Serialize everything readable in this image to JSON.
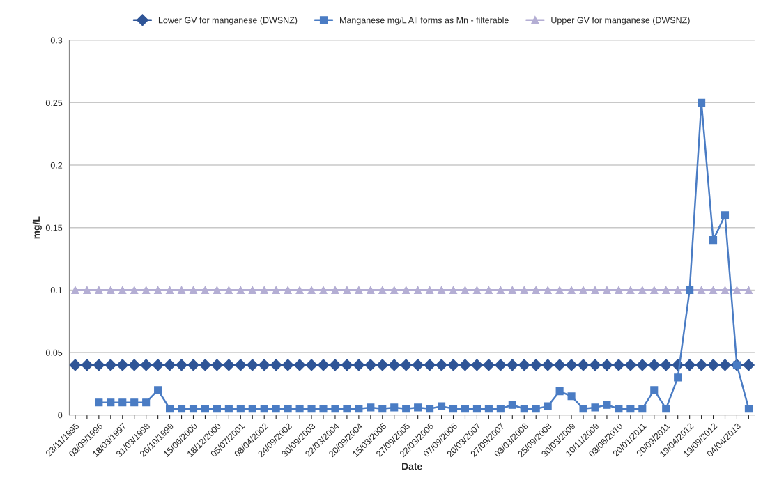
{
  "chart_data": {
    "type": "line",
    "xlabel": "Date",
    "ylabel": "mg/L",
    "categories": [
      "23/11/1995",
      null,
      "03/09/1996",
      null,
      "18/03/1997",
      null,
      "31/03/1998",
      null,
      "26/10/1999",
      null,
      "15/06/2000",
      null,
      "18/12/2000",
      null,
      "05/07/2001",
      null,
      "08/04/2002",
      null,
      "24/09/2002",
      null,
      "30/09/2003",
      null,
      "22/03/2004",
      null,
      "20/09/2004",
      null,
      "15/03/2005",
      null,
      "27/09/2005",
      null,
      "22/03/2006",
      null,
      "07/09/2006",
      null,
      "20/03/2007",
      null,
      "27/09/2007",
      null,
      "03/03/2008",
      null,
      "25/09/2008",
      null,
      "30/03/2009",
      null,
      "10/11/2009",
      null,
      "03/06/2010",
      null,
      "20/01/2011",
      null,
      "20/09/2011",
      null,
      "19/04/2012",
      null,
      "19/09/2012",
      null,
      "04/04/2013",
      null
    ],
    "series": [
      {
        "name": "Lower GV for manganese (DWSNZ)",
        "color": "#2f5597",
        "marker": "diamond",
        "values": [
          0.04,
          0.04,
          0.04,
          0.04,
          0.04,
          0.04,
          0.04,
          0.04,
          0.04,
          0.04,
          0.04,
          0.04,
          0.04,
          0.04,
          0.04,
          0.04,
          0.04,
          0.04,
          0.04,
          0.04,
          0.04,
          0.04,
          0.04,
          0.04,
          0.04,
          0.04,
          0.04,
          0.04,
          0.04,
          0.04,
          0.04,
          0.04,
          0.04,
          0.04,
          0.04,
          0.04,
          0.04,
          0.04,
          0.04,
          0.04,
          0.04,
          0.04,
          0.04,
          0.04,
          0.04,
          0.04,
          0.04,
          0.04,
          0.04,
          0.04,
          0.04,
          0.04,
          0.04,
          0.04,
          0.04,
          0.04,
          0.04,
          0.04
        ]
      },
      {
        "name": "Manganese mg/L All forms as Mn - filterable",
        "color": "#4a7cc4",
        "marker": "square",
        "values": [
          null,
          null,
          0.01,
          0.01,
          0.01,
          0.01,
          0.01,
          0.02,
          0.005,
          0.005,
          0.005,
          0.005,
          0.005,
          0.005,
          0.005,
          0.005,
          0.005,
          0.005,
          0.005,
          0.005,
          0.005,
          0.005,
          0.005,
          0.005,
          0.005,
          0.006,
          0.005,
          0.006,
          0.005,
          0.006,
          0.005,
          0.007,
          0.005,
          0.005,
          0.005,
          0.005,
          0.005,
          0.008,
          0.005,
          0.005,
          0.007,
          0.019,
          0.015,
          0.005,
          0.006,
          0.008,
          0.005,
          0.005,
          0.005,
          0.02,
          0.005,
          0.03,
          0.1,
          0.25,
          0.14,
          0.16,
          0.04,
          0.005
        ]
      },
      {
        "name": "Upper GV for manganese (DWSNZ)",
        "color": "#b4aed4",
        "marker": "triangle",
        "values": [
          0.1,
          0.1,
          0.1,
          0.1,
          0.1,
          0.1,
          0.1,
          0.1,
          0.1,
          0.1,
          0.1,
          0.1,
          0.1,
          0.1,
          0.1,
          0.1,
          0.1,
          0.1,
          0.1,
          0.1,
          0.1,
          0.1,
          0.1,
          0.1,
          0.1,
          0.1,
          0.1,
          0.1,
          0.1,
          0.1,
          0.1,
          0.1,
          0.1,
          0.1,
          0.1,
          0.1,
          0.1,
          0.1,
          0.1,
          0.1,
          0.1,
          0.1,
          0.1,
          0.1,
          0.1,
          0.1,
          0.1,
          0.1,
          0.1,
          0.1,
          0.1,
          0.1,
          0.1,
          0.1,
          0.1,
          0.1,
          0.1,
          0.1
        ]
      }
    ],
    "ylim": [
      0,
      0.3
    ],
    "yticks": [
      0,
      0.05,
      0.1,
      0.15,
      0.2,
      0.25,
      0.3
    ],
    "grid": "y",
    "legend": "top"
  }
}
